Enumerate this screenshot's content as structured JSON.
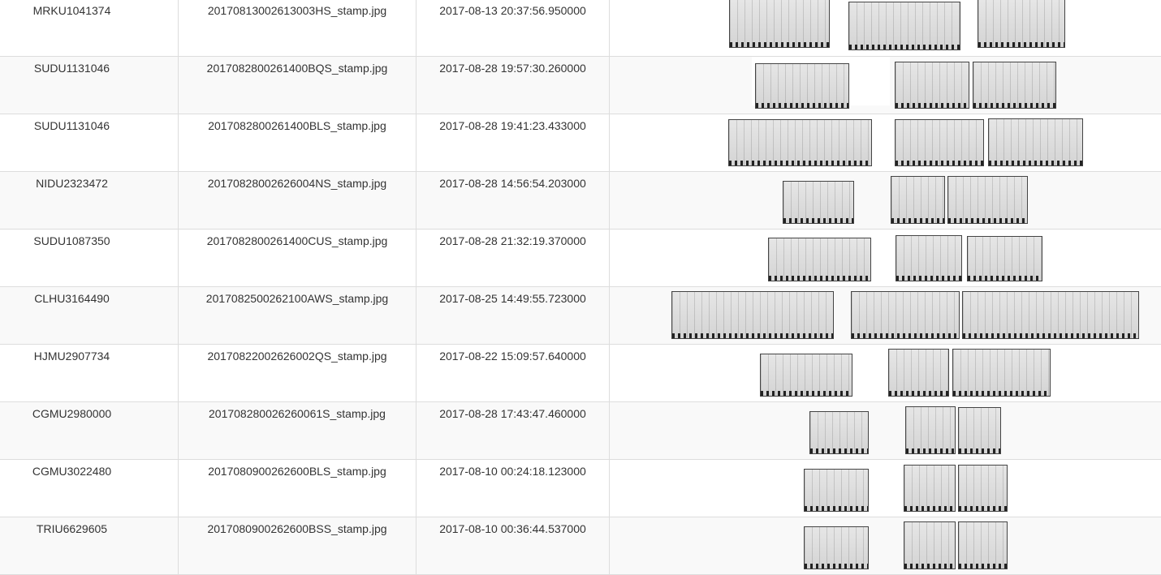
{
  "rows": [
    {
      "container": "MRKU1041374",
      "file": "20170813002613003HS_stamp.jpg",
      "time": "2017-08-13 20:37:56.950000",
      "scan_icon": "xray-scan-images"
    },
    {
      "container": "SUDU1131046",
      "file": "2017082800261400BQS_stamp.jpg",
      "time": "2017-08-28 19:57:30.260000",
      "scan_icon": "xray-scan-images"
    },
    {
      "container": "SUDU1131046",
      "file": "2017082800261400BLS_stamp.jpg",
      "time": "2017-08-28 19:41:23.433000",
      "scan_icon": "xray-scan-images"
    },
    {
      "container": "NIDU2323472",
      "file": "20170828002626004NS_stamp.jpg",
      "time": "2017-08-28 14:56:54.203000",
      "scan_icon": "xray-scan-images"
    },
    {
      "container": "SUDU1087350",
      "file": "2017082800261400CUS_stamp.jpg",
      "time": "2017-08-28 21:32:19.370000",
      "scan_icon": "xray-scan-images"
    },
    {
      "container": "CLHU3164490",
      "file": "2017082500262100AWS_stamp.jpg",
      "time": "2017-08-25 14:49:55.723000",
      "scan_icon": "xray-scan-images"
    },
    {
      "container": "HJMU2907734",
      "file": "20170822002626002QS_stamp.jpg",
      "time": "2017-08-22 15:09:57.640000",
      "scan_icon": "xray-scan-images"
    },
    {
      "container": "CGMU2980000",
      "file": "201708280026260061S_stamp.jpg",
      "time": "2017-08-28 17:43:47.460000",
      "scan_icon": "xray-scan-images"
    },
    {
      "container": "CGMU3022480",
      "file": "2017080900262600BLS_stamp.jpg",
      "time": "2017-08-10 00:24:18.123000",
      "scan_icon": "xray-scan-images"
    },
    {
      "container": "TRIU6629605",
      "file": "2017080900262600BSS_stamp.jpg",
      "time": "2017-08-10 00:36:44.537000",
      "scan_icon": "xray-scan-images"
    }
  ]
}
